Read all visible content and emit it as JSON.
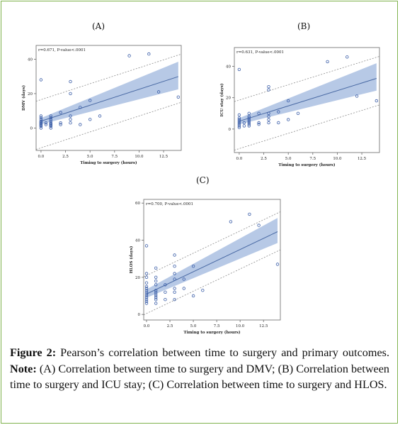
{
  "figure": {
    "caption": {
      "figure_label": "Figure 2:",
      "intro": " Pearson’s correlation between time to surgery and primary outcomes. ",
      "note_label": "Note:",
      "body": " (A) Correlation between time to surgery and DMV; (B) Correlation between time to surgery and ICU stay; (C) Correlation between time to surgery and HLOS."
    }
  },
  "colors": {
    "band": "#b7c9e6",
    "line": "#4a6aa4",
    "points": "#3b5ea8",
    "limits": "#8c8c8c",
    "axis": "#666666",
    "frame_border": "#7fb24d"
  },
  "chart_data": [
    {
      "type": "scatter",
      "panel_label": "(A)",
      "title": "",
      "annotation": "r=0.671, P-value<.0001",
      "xlabel": "Timing to surgery (hours)",
      "ylabel": "DMV (days)",
      "xlim": [
        -0.5,
        14.3
      ],
      "ylim": [
        -13,
        48
      ],
      "xticks": [
        "0.0",
        "2.5",
        "5.0",
        "7.5",
        "10.0",
        "12.5"
      ],
      "xtick_values": [
        0,
        2.5,
        5,
        7.5,
        10,
        12.5
      ],
      "yticks": [
        "0",
        "20",
        "40"
      ],
      "ytick_values": [
        0,
        20,
        40
      ],
      "grid": false,
      "points": [
        [
          0,
          0
        ],
        [
          0,
          1
        ],
        [
          0,
          1.5
        ],
        [
          0,
          2
        ],
        [
          0,
          2.5
        ],
        [
          0,
          3
        ],
        [
          0,
          3.5
        ],
        [
          0,
          4
        ],
        [
          0,
          5
        ],
        [
          0,
          6
        ],
        [
          0,
          7
        ],
        [
          0,
          28
        ],
        [
          0.5,
          2
        ],
        [
          0.5,
          3
        ],
        [
          1,
          0
        ],
        [
          1,
          1
        ],
        [
          1,
          1.5
        ],
        [
          1,
          2
        ],
        [
          1,
          2.5
        ],
        [
          1,
          3
        ],
        [
          1,
          4
        ],
        [
          1,
          5
        ],
        [
          1,
          6
        ],
        [
          1,
          7
        ],
        [
          2,
          2
        ],
        [
          2,
          3
        ],
        [
          2,
          9
        ],
        [
          3,
          3
        ],
        [
          3,
          5
        ],
        [
          3,
          7
        ],
        [
          3,
          20
        ],
        [
          3,
          27
        ],
        [
          4,
          2
        ],
        [
          4,
          12
        ],
        [
          5,
          5
        ],
        [
          5,
          16
        ],
        [
          6,
          7
        ],
        [
          9,
          42
        ],
        [
          11,
          43
        ],
        [
          12,
          21
        ],
        [
          14,
          18
        ]
      ],
      "fit": {
        "slope": 1.85,
        "intercept": 4.0
      },
      "ci_band": {
        "x0": 0,
        "lo0": 2.2,
        "hi0": 5.8,
        "x1": 14,
        "lo1": 22.5,
        "hi1": 38.5
      },
      "prediction_limits": {
        "lower_intercept": -11.5,
        "upper_intercept": 16.5
      }
    },
    {
      "type": "scatter",
      "panel_label": "(B)",
      "title": "",
      "annotation": "r=0.631, P-value<.0001",
      "xlabel": "Timing to surgery (hours)",
      "ylabel": "ICU stay (days)",
      "xlim": [
        -0.5,
        14.3
      ],
      "ylim": [
        -15,
        52
      ],
      "xticks": [
        "0.0",
        "2.5",
        "5.0",
        "7.5",
        "10.0",
        "12.5"
      ],
      "xtick_values": [
        0,
        2.5,
        5,
        7.5,
        10,
        12.5
      ],
      "yticks": [
        "0",
        "20",
        "40"
      ],
      "ytick_values": [
        0,
        20,
        40
      ],
      "grid": false,
      "points": [
        [
          0,
          1
        ],
        [
          0,
          2
        ],
        [
          0,
          3
        ],
        [
          0,
          4
        ],
        [
          0,
          5
        ],
        [
          0,
          6
        ],
        [
          0,
          7
        ],
        [
          0,
          9
        ],
        [
          0,
          38
        ],
        [
          0.5,
          2
        ],
        [
          0.5,
          4
        ],
        [
          1,
          2
        ],
        [
          1,
          3
        ],
        [
          1,
          4
        ],
        [
          1,
          5
        ],
        [
          1,
          6
        ],
        [
          1,
          7
        ],
        [
          1,
          8
        ],
        [
          1,
          10
        ],
        [
          2,
          3
        ],
        [
          2,
          4
        ],
        [
          2,
          10
        ],
        [
          3,
          4
        ],
        [
          3,
          6
        ],
        [
          3,
          8
        ],
        [
          3,
          10
        ],
        [
          3,
          25
        ],
        [
          3,
          27
        ],
        [
          4,
          4
        ],
        [
          4,
          11
        ],
        [
          5,
          6
        ],
        [
          5,
          18
        ],
        [
          6,
          10
        ],
        [
          9,
          43
        ],
        [
          11,
          46
        ],
        [
          12,
          21
        ],
        [
          14,
          18
        ]
      ],
      "fit": {
        "slope": 1.95,
        "intercept": 5.0
      },
      "ci_band": {
        "x0": 0,
        "lo0": 3.0,
        "hi0": 7.0,
        "x1": 14,
        "lo1": 24.5,
        "hi1": 42.0
      },
      "prediction_limits": {
        "lower_intercept": -12.5,
        "upper_intercept": 18.5
      }
    },
    {
      "type": "scatter",
      "panel_label": "(C)",
      "title": "",
      "annotation": "r=0.700, P-value<.0001",
      "xlabel": "Timing to surgery (hours)",
      "ylabel": "HLOS (days)",
      "xlim": [
        -0.3,
        14.3
      ],
      "ylim": [
        -3,
        62
      ],
      "xticks": [
        "0.0",
        "2.5",
        "5.0",
        "7.5",
        "10.0",
        "12.5"
      ],
      "xtick_values": [
        0,
        2.5,
        5,
        7.5,
        10,
        12.5
      ],
      "yticks": [
        "0",
        "20",
        "40",
        "60"
      ],
      "ytick_values": [
        0,
        20,
        40,
        60
      ],
      "grid": false,
      "points": [
        [
          0,
          6
        ],
        [
          0,
          7
        ],
        [
          0,
          8
        ],
        [
          0,
          9
        ],
        [
          0,
          10
        ],
        [
          0,
          11
        ],
        [
          0,
          12
        ],
        [
          0,
          13
        ],
        [
          0,
          14
        ],
        [
          0,
          15
        ],
        [
          0,
          17
        ],
        [
          0,
          20
        ],
        [
          0,
          22
        ],
        [
          0,
          37
        ],
        [
          1,
          6
        ],
        [
          1,
          8
        ],
        [
          1,
          9
        ],
        [
          1,
          10
        ],
        [
          1,
          11
        ],
        [
          1,
          12
        ],
        [
          1,
          13
        ],
        [
          1,
          16
        ],
        [
          1,
          18
        ],
        [
          1,
          20
        ],
        [
          1,
          25
        ],
        [
          2,
          8
        ],
        [
          2,
          12
        ],
        [
          2,
          16
        ],
        [
          3,
          8
        ],
        [
          3,
          12
        ],
        [
          3,
          14
        ],
        [
          3,
          19
        ],
        [
          3,
          22
        ],
        [
          3,
          26
        ],
        [
          3,
          32
        ],
        [
          4,
          14
        ],
        [
          4,
          19
        ],
        [
          5,
          10
        ],
        [
          5,
          26
        ],
        [
          6,
          13
        ],
        [
          9,
          50
        ],
        [
          11,
          54
        ],
        [
          12,
          48
        ],
        [
          14,
          27
        ]
      ],
      "fit": {
        "slope": 2.4,
        "intercept": 11.0
      },
      "ci_band": {
        "x0": 0,
        "lo0": 9.0,
        "hi0": 13.5,
        "x1": 14,
        "lo1": 38.5,
        "hi1": 52.0
      },
      "prediction_limits": {
        "lower_intercept": 0.5,
        "upper_intercept": 21.0
      }
    }
  ]
}
